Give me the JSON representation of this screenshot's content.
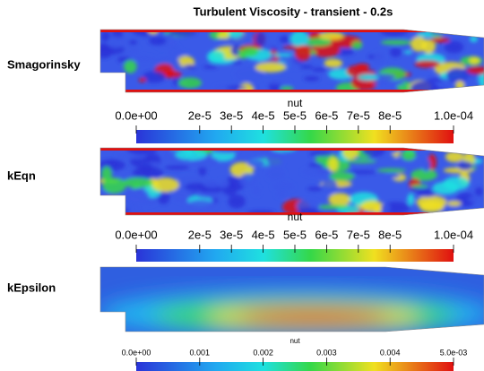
{
  "title": "Turbulent Viscosity - transient - 0.2s",
  "panels": [
    {
      "label": "Smagorinsky",
      "colorbar": {
        "title": "nut",
        "range": [
          0,
          0.0001
        ],
        "ticks": [
          {
            "value": 0,
            "label": "0.0e+00"
          },
          {
            "value": 2e-05,
            "label": "2e-5"
          },
          {
            "value": 3e-05,
            "label": "3e-5"
          },
          {
            "value": 4e-05,
            "label": "4e-5"
          },
          {
            "value": 5e-05,
            "label": "5e-5"
          },
          {
            "value": 6e-05,
            "label": "6e-5"
          },
          {
            "value": 7e-05,
            "label": "7e-5"
          },
          {
            "value": 8e-05,
            "label": "8e-5"
          },
          {
            "value": 0.0001,
            "label": "1.0e-04"
          }
        ]
      }
    },
    {
      "label": "kEqn",
      "colorbar": {
        "title": "nut",
        "range": [
          0,
          0.0001
        ],
        "ticks": [
          {
            "value": 0,
            "label": "0.0e+00"
          },
          {
            "value": 2e-05,
            "label": "2e-5"
          },
          {
            "value": 3e-05,
            "label": "3e-5"
          },
          {
            "value": 4e-05,
            "label": "4e-5"
          },
          {
            "value": 5e-05,
            "label": "5e-5"
          },
          {
            "value": 6e-05,
            "label": "6e-5"
          },
          {
            "value": 7e-05,
            "label": "7e-5"
          },
          {
            "value": 8e-05,
            "label": "8e-5"
          },
          {
            "value": 0.0001,
            "label": "1.0e-04"
          }
        ]
      }
    },
    {
      "label": "kEpsilon",
      "colorbar": {
        "title": "nut",
        "range": [
          0,
          0.005
        ],
        "ticks": [
          {
            "value": 0,
            "label": "0.0e+00"
          },
          {
            "value": 0.001,
            "label": "0.001"
          },
          {
            "value": 0.002,
            "label": "0.002"
          },
          {
            "value": 0.003,
            "label": "0.003"
          },
          {
            "value": 0.004,
            "label": "0.004"
          },
          {
            "value": 0.005,
            "label": "5.0e-03"
          }
        ]
      }
    }
  ]
}
